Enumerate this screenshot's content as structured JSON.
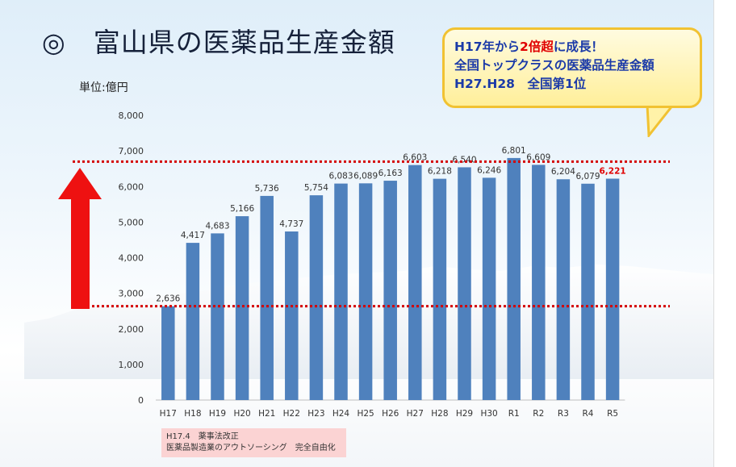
{
  "page": {
    "title": "◎　富山県の医薬品生産金額",
    "unit_label": "単位:億円"
  },
  "callout": {
    "line1_a": "H17年から",
    "line1_b": "2倍超",
    "line1_c": "に成長！",
    "line2": "全国トップクラスの医薬品生産金額",
    "line3_a": "H27.H28",
    "line3_b": "全国第1位"
  },
  "note": {
    "line1": "H17.4　薬事法改正",
    "line2": "医薬品製造業のアウトソーシング　完全自由化"
  },
  "colors": {
    "bar": "#4f81bd",
    "highlight_label": "#e00000",
    "arrow": "#ee1111",
    "dotted_line": "#d40000"
  },
  "chart_data": {
    "type": "bar",
    "title": "",
    "xlabel": "",
    "ylabel": "単位:億円",
    "categories": [
      "H17",
      "H18",
      "H19",
      "H20",
      "H21",
      "H22",
      "H23",
      "H24",
      "H25",
      "H26",
      "H27",
      "H28",
      "H29",
      "H30",
      "R1",
      "R2",
      "R3",
      "R4",
      "R5"
    ],
    "values": [
      2636,
      4417,
      4683,
      5166,
      5736,
      4737,
      5754,
      6083,
      6089,
      6163,
      6603,
      6218,
      6540,
      6246,
      6801,
      6609,
      6204,
      6079,
      6221
    ],
    "value_labels": [
      "2,636",
      "4,417",
      "4,683",
      "5,166",
      "5,736",
      "4,737",
      "5,754",
      "6,083",
      "6,089",
      "6,163",
      "6,603",
      "6,218",
      "6,540",
      "6,246",
      "6,801",
      "6,609",
      "6,204",
      "6,079",
      "6,221"
    ],
    "highlight_index": 18,
    "ylim": [
      0,
      8000
    ],
    "yticks": [
      0,
      1000,
      2000,
      3000,
      4000,
      5000,
      6000,
      7000,
      8000
    ],
    "ytick_labels": [
      "0",
      "1,000",
      "2,000",
      "3,000",
      "4,000",
      "5,000",
      "6,000",
      "7,000",
      "8,000"
    ],
    "reference_lines": [
      2636,
      6700
    ],
    "grid": false
  }
}
